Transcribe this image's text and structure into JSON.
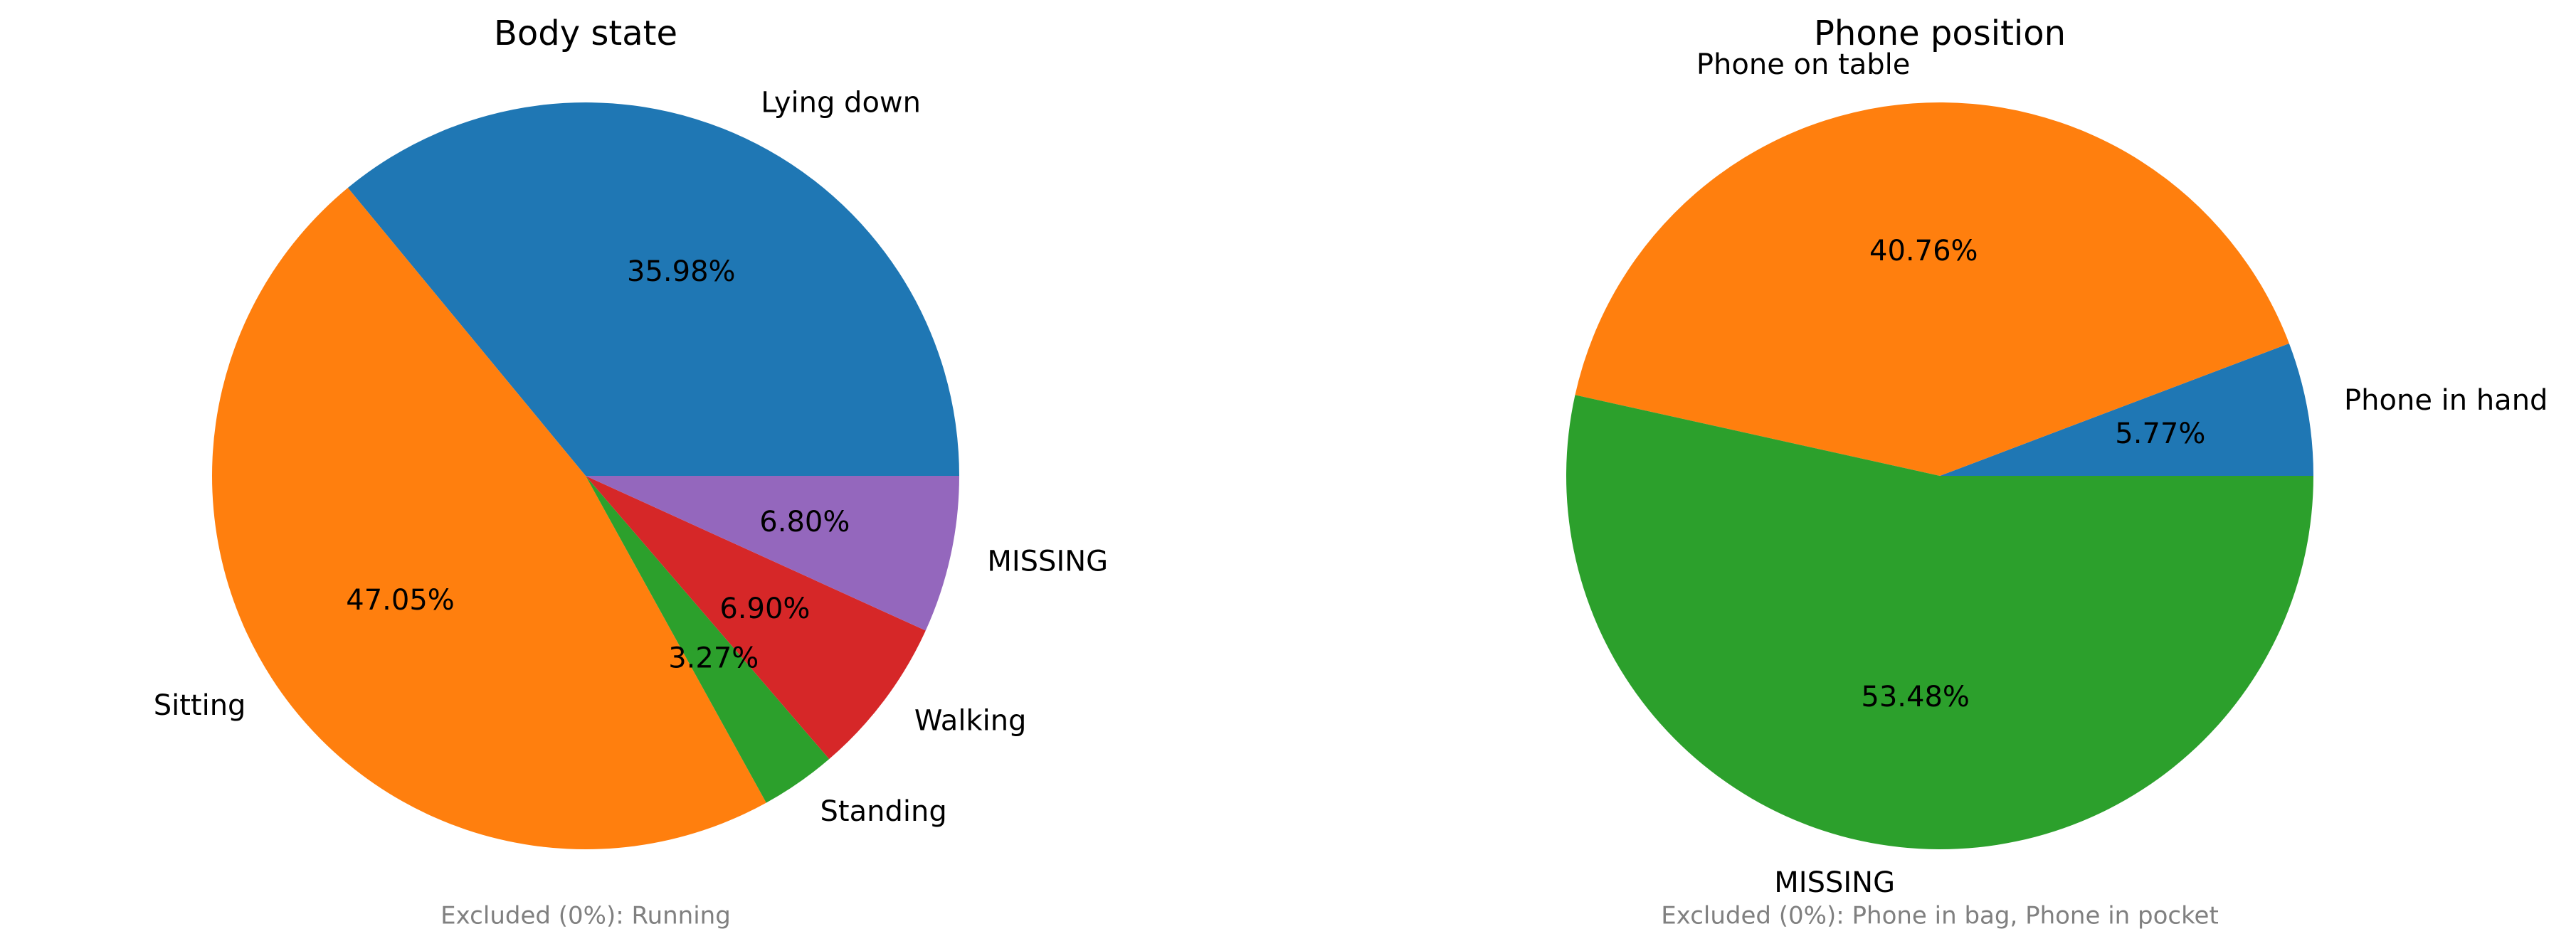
{
  "chart_data": [
    {
      "type": "pie",
      "title": "Body state",
      "slices": [
        {
          "label": "Lying down",
          "value": 35.98,
          "pct_label": "35.98%",
          "color": "#1f77b4"
        },
        {
          "label": "Sitting",
          "value": 47.05,
          "pct_label": "47.05%",
          "color": "#ff7f0e"
        },
        {
          "label": "Standing",
          "value": 3.27,
          "pct_label": "3.27%",
          "color": "#2ca02c"
        },
        {
          "label": "Walking",
          "value": 6.9,
          "pct_label": "6.90%",
          "color": "#d62728"
        },
        {
          "label": "MISSING",
          "value": 6.8,
          "pct_label": "6.80%",
          "color": "#9467bd"
        }
      ],
      "start_angle": 0,
      "direction": "counterclockwise",
      "footnote": "Excluded (0%): Running"
    },
    {
      "type": "pie",
      "title": "Phone position",
      "slices": [
        {
          "label": "Phone in hand",
          "value": 5.77,
          "pct_label": "5.77%",
          "color": "#1f77b4"
        },
        {
          "label": "Phone on table",
          "value": 40.76,
          "pct_label": "40.76%",
          "color": "#ff7f0e"
        },
        {
          "label": "MISSING",
          "value": 53.48,
          "pct_label": "53.48%",
          "color": "#2ca02c"
        }
      ],
      "start_angle": 0,
      "direction": "counterclockwise",
      "footnote": "Excluded (0%): Phone in bag, Phone in pocket"
    }
  ]
}
